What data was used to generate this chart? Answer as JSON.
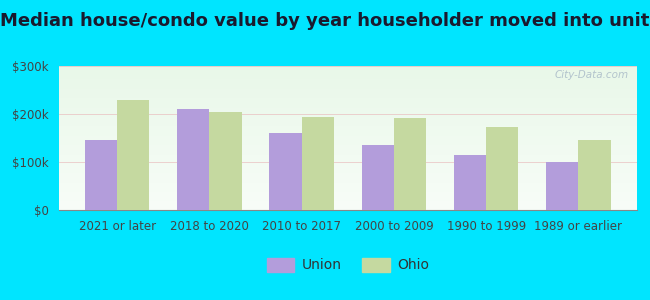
{
  "title": "Median house/condo value by year householder moved into unit",
  "categories": [
    "2021 or later",
    "2018 to 2020",
    "2010 to 2017",
    "2000 to 2009",
    "1990 to 1999",
    "1989 or earlier"
  ],
  "union_values": [
    145000,
    210000,
    160000,
    135000,
    115000,
    100000
  ],
  "ohio_values": [
    230000,
    205000,
    193000,
    192000,
    172000,
    145000
  ],
  "union_color": "#b39ddb",
  "ohio_color": "#c5d9a0",
  "background_outer": "#00e5ff",
  "ylabel_ticks": [
    "$0",
    "$100k",
    "$200k",
    "$300k"
  ],
  "ytick_values": [
    0,
    100000,
    200000,
    300000
  ],
  "ylim": [
    0,
    300000
  ],
  "bar_width": 0.35,
  "legend_labels": [
    "Union",
    "Ohio"
  ],
  "watermark": "City-Data.com",
  "title_fontsize": 13,
  "tick_fontsize": 8.5,
  "legend_fontsize": 10
}
